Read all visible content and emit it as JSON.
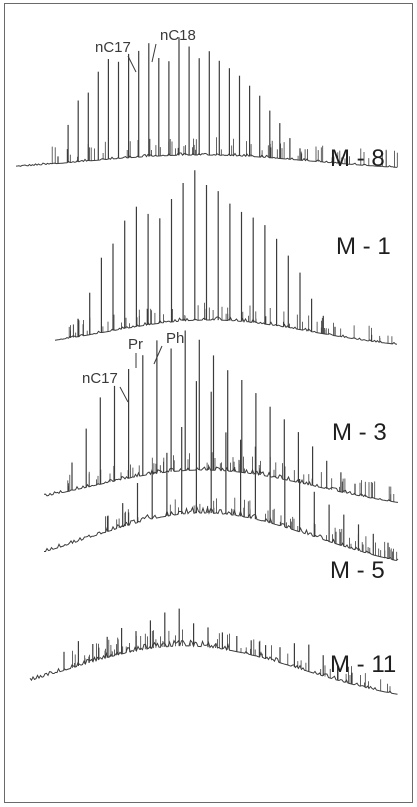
{
  "chart_data": {
    "type": "line",
    "description_of_axes": "",
    "colors": {
      "trace": "#3c3c3c",
      "frame": "#6a6a6a",
      "text": "#1e1e1e"
    },
    "panels": [
      {
        "label": "M - 8",
        "annotations": [
          "nC17",
          "nC18"
        ],
        "peak_heights": [
          0.06,
          0.32,
          0.52,
          0.58,
          0.75,
          0.85,
          0.82,
          0.88,
          0.9,
          0.96,
          0.83,
          0.8,
          1.0,
          0.92,
          0.82,
          0.88,
          0.8,
          0.74,
          0.68,
          0.6,
          0.52,
          0.4,
          0.3,
          0.18,
          0.1
        ]
      },
      {
        "label": "M - 1",
        "annotations": [],
        "peak_heights": [
          0.12,
          0.28,
          0.5,
          0.58,
          0.72,
          0.8,
          0.74,
          0.7,
          0.82,
          0.92,
          1.0,
          0.9,
          0.86,
          0.78,
          0.73,
          0.7,
          0.66,
          0.58,
          0.48,
          0.38,
          0.22,
          0.12,
          0.06
        ]
      },
      {
        "label": "M - 3",
        "annotations": [],
        "peak_heights": [
          0.2,
          0.42,
          0.62,
          0.68,
          0.78,
          0.86,
          0.95,
          0.88,
          1.0,
          0.93,
          0.82,
          0.72,
          0.66,
          0.58,
          0.5,
          0.43,
          0.36,
          0.28,
          0.2,
          0.14,
          0.08
        ]
      },
      {
        "label": "M - 5",
        "annotations": [
          "Pr",
          "Ph",
          "nC17"
        ],
        "peak_heights": [
          0.12,
          0.18,
          0.3,
          0.36,
          0.48,
          0.66,
          1.0,
          0.92,
          0.62,
          0.58,
          0.55,
          0.5,
          0.46,
          0.4,
          0.34,
          0.28,
          0.24,
          0.2,
          0.16,
          0.12
        ]
      },
      {
        "label": "M - 11",
        "annotations": [],
        "peak_heights": [
          0.36,
          0.48,
          0.34,
          0.4,
          0.5,
          0.38,
          0.54,
          0.66,
          0.72,
          0.44,
          0.38,
          0.32,
          0.3,
          0.28,
          0.26,
          0.3,
          0.46,
          0.52,
          0.4,
          0.3,
          0.22
        ]
      }
    ]
  }
}
